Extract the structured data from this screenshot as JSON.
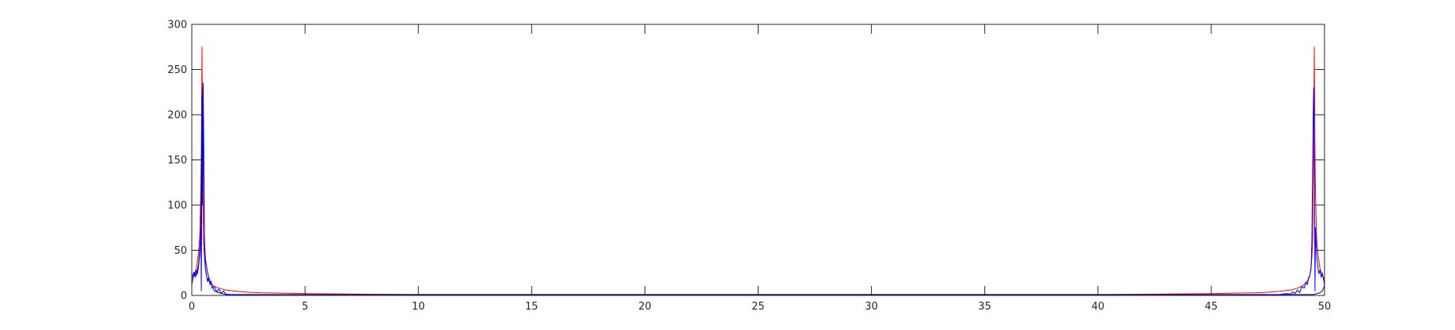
{
  "chart_data": {
    "type": "line",
    "title": "",
    "xlabel": "",
    "ylabel": "",
    "xlim": [
      0,
      50
    ],
    "ylim": [
      0,
      300
    ],
    "xticks": [
      0,
      5,
      10,
      15,
      20,
      25,
      30,
      35,
      40,
      45,
      50
    ],
    "yticks": [
      0,
      50,
      100,
      150,
      200,
      250,
      300
    ],
    "xtick_labels": [
      "0",
      "5",
      "10",
      "15",
      "20",
      "25",
      "30",
      "35",
      "40",
      "45",
      "50"
    ],
    "ytick_labels": [
      "0",
      "50",
      "100",
      "150",
      "200",
      "250",
      "300"
    ],
    "grid": false,
    "legend": "none",
    "box": true,
    "series": [
      {
        "color": "#ff0000",
        "x": [
          0,
          0.1,
          0.2,
          0.3,
          0.35,
          0.4,
          0.42,
          0.45,
          0.48,
          0.5,
          0.52,
          0.55,
          0.58,
          0.6,
          0.65,
          0.7,
          0.8,
          0.9,
          1.0,
          1.2,
          1.5,
          2.0,
          2.5,
          3.0,
          4.0,
          5.0,
          7.0,
          9.9,
          40.2,
          43.0,
          45.0,
          46.0,
          47.0,
          47.5,
          48.0,
          48.5,
          48.8,
          49.0,
          49.1,
          49.2,
          49.3,
          49.35,
          49.4,
          49.42,
          49.45,
          49.48,
          49.5,
          49.52,
          49.55,
          49.58,
          49.6,
          49.65,
          49.7,
          49.8,
          49.9,
          50.0
        ],
        "y": [
          18,
          22,
          30,
          48,
          65,
          115,
          160,
          275,
          150,
          90,
          60,
          45,
          35,
          28,
          22,
          18,
          15,
          12,
          10,
          8,
          6,
          4.5,
          3.5,
          3,
          2.5,
          2,
          1.5,
          1,
          1,
          1.5,
          2,
          2.5,
          3,
          3.5,
          4.5,
          6,
          8,
          10,
          12,
          15,
          18,
          22,
          28,
          35,
          45,
          60,
          90,
          150,
          275,
          160,
          115,
          65,
          48,
          30,
          22,
          18
        ]
      },
      {
        "color": "#000080",
        "x": [
          0,
          0.1,
          0.2,
          0.3,
          0.38,
          0.42,
          0.45,
          0.47,
          0.5,
          0.53,
          0.56,
          0.6,
          0.7,
          0.8,
          0.9,
          1.0,
          1.2,
          1.5,
          49.5,
          49.8,
          49.9,
          49.99,
          50.0
        ],
        "y": [
          20,
          26,
          22,
          35,
          60,
          120,
          222,
          100,
          235,
          160,
          60,
          40,
          25,
          15,
          10,
          5,
          3,
          1,
          1,
          3,
          5,
          10,
          20
        ]
      },
      {
        "color": "#0000ff",
        "x": [
          0,
          0.05,
          0.1,
          0.15,
          0.2,
          0.25,
          0.3,
          0.35,
          0.4,
          0.42,
          0.44,
          0.46,
          0.48,
          0.5,
          0.52,
          0.54,
          0.56,
          0.58,
          0.6,
          0.65,
          0.7,
          0.75,
          0.8,
          0.85,
          0.9,
          1.0,
          1.1,
          1.2,
          1.3,
          1.4,
          1.5,
          1.7,
          2.0,
          2.5,
          3.0,
          5.0,
          10.0,
          20.0,
          30.0,
          40.0,
          45.0,
          47.0,
          48.0,
          48.3,
          48.5,
          48.6,
          48.7,
          48.8,
          48.9,
          49.0,
          49.1,
          49.2,
          49.25,
          49.3,
          49.35,
          49.4,
          49.42,
          49.44,
          49.46,
          49.48,
          49.5,
          49.52,
          49.54,
          49.56,
          49.58,
          49.6,
          49.65,
          49.7,
          49.75,
          49.8,
          49.85,
          49.9,
          49.95,
          50.0
        ],
        "y": [
          12,
          18,
          25,
          20,
          28,
          24,
          32,
          45,
          75,
          5,
          120,
          175,
          230,
          200,
          150,
          100,
          60,
          40,
          30,
          22,
          15,
          20,
          12,
          16,
          8,
          10,
          4,
          7,
          2,
          5,
          1.5,
          1,
          0.5,
          0.3,
          0.2,
          0.1,
          0.1,
          0.1,
          0.1,
          0.1,
          0.2,
          0.5,
          1,
          2,
          1.5,
          4,
          2,
          6,
          3,
          10,
          8,
          15,
          12,
          20,
          22,
          30,
          40,
          60,
          100,
          150,
          200,
          230,
          175,
          120,
          5,
          75,
          45,
          32,
          24,
          28,
          20,
          25,
          18,
          12
        ]
      }
    ]
  }
}
